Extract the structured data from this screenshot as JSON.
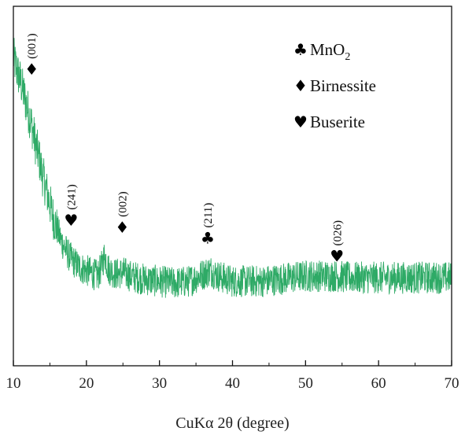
{
  "chart_data": {
    "type": "line",
    "xlabel": "CuKα 2θ (degree)",
    "ylabel": "",
    "xlim": [
      10,
      70
    ],
    "ylim": [
      0,
      100
    ],
    "x_ticks": [
      10,
      20,
      30,
      40,
      50,
      60,
      70
    ],
    "y_ticks_shown": false,
    "grid": false,
    "legend_position": "top-right",
    "line_color": "#2eaa66",
    "series": [
      {
        "points": [
          [
            10,
            86
          ],
          [
            10.5,
            82
          ],
          [
            11,
            79
          ],
          [
            11.5,
            75
          ],
          [
            12,
            71
          ],
          [
            12.5,
            67
          ],
          [
            13,
            62
          ],
          [
            13.5,
            58
          ],
          [
            14,
            53
          ],
          [
            14.5,
            49
          ],
          [
            15,
            45
          ],
          [
            15.5,
            41
          ],
          [
            16,
            38
          ],
          [
            16.5,
            35
          ],
          [
            17,
            33
          ],
          [
            17.5,
            31
          ],
          [
            18,
            29.5
          ],
          [
            18.5,
            28.5
          ],
          [
            19,
            27.5
          ],
          [
            20,
            26.5
          ],
          [
            21,
            25.5
          ],
          [
            21.5,
            25
          ],
          [
            22,
            27
          ],
          [
            22.5,
            31
          ],
          [
            23,
            27
          ],
          [
            24,
            25.5
          ],
          [
            25,
            26
          ],
          [
            26,
            25
          ],
          [
            28,
            24
          ],
          [
            30,
            23.5
          ],
          [
            32,
            23
          ],
          [
            34,
            23.5
          ],
          [
            35,
            24.5
          ],
          [
            36,
            25.5
          ],
          [
            37,
            26.5
          ],
          [
            38,
            25
          ],
          [
            40,
            23.5
          ],
          [
            42,
            23.5
          ],
          [
            44,
            23.5
          ],
          [
            46,
            24
          ],
          [
            48,
            24.5
          ],
          [
            50,
            25
          ],
          [
            52,
            25
          ],
          [
            54,
            25
          ],
          [
            56,
            24.5
          ],
          [
            58,
            24.5
          ],
          [
            60,
            24.5
          ],
          [
            62,
            24.5
          ],
          [
            64,
            24.5
          ],
          [
            66,
            24.5
          ],
          [
            68,
            24.5
          ],
          [
            70,
            24.5
          ]
        ],
        "noise_amplitude": 4.5
      }
    ],
    "legend": [
      {
        "symbol": "♣",
        "label": "MnO",
        "subscript": "2"
      },
      {
        "symbol": "♦",
        "label": "Birnessite",
        "subscript": ""
      },
      {
        "symbol": "♥",
        "label": "Buserite",
        "subscript": ""
      }
    ],
    "peaks": [
      {
        "x": 12.5,
        "symbol": "♦",
        "label": "(001)",
        "level": 81
      },
      {
        "x": 17.9,
        "symbol": "♥",
        "label": "(241)",
        "level": 39
      },
      {
        "x": 24.9,
        "symbol": "♦",
        "label": "(002)",
        "level": 37
      },
      {
        "x": 36.6,
        "symbol": "♣",
        "label": "(211)",
        "level": 34
      },
      {
        "x": 54.3,
        "symbol": "♥",
        "label": "(026)",
        "level": 29
      }
    ]
  }
}
